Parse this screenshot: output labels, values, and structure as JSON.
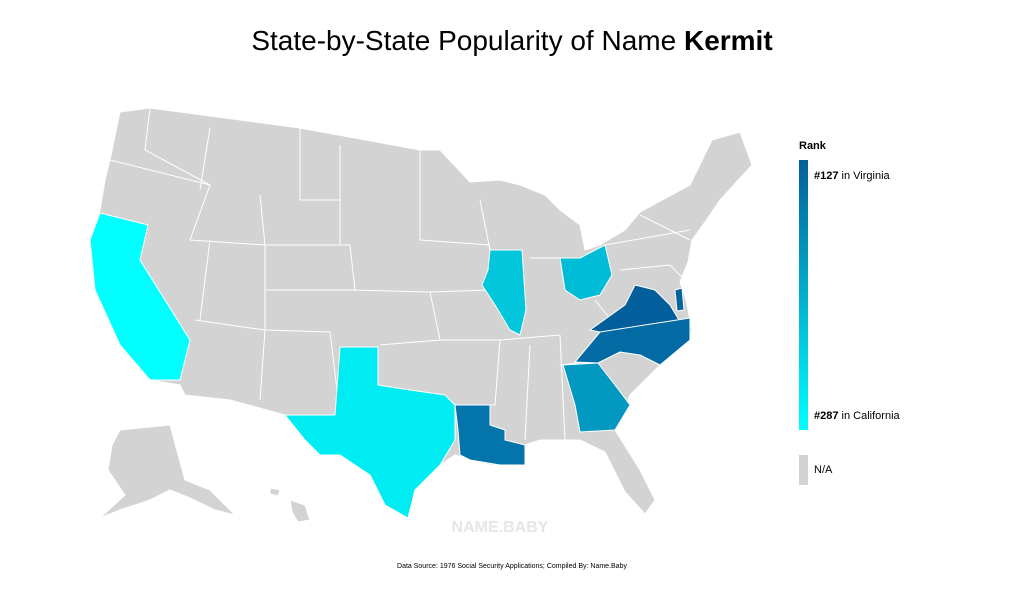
{
  "chart_data": {
    "type": "choropleth",
    "title": "State-by-State Popularity of Name",
    "name": "Kermit",
    "values": [
      127,
      140,
      132,
      150,
      185,
      230,
      220,
      268,
      287
    ],
    "colors": [
      "#035e9c",
      "#00ffff"
    ],
    "na_color": "#d3d3d3",
    "legend": {
      "title": "Rank",
      "top": {
        "value": 127,
        "label": "#127",
        "place": "in Virginia"
      },
      "bottom": {
        "value": 287,
        "label": "#287",
        "place": "in California"
      },
      "na": "N/A"
    },
    "watermark": "NAME.BABY",
    "source": "Data Source: 1976 Social Security Applications; Compiled By: Name.Baby"
  }
}
